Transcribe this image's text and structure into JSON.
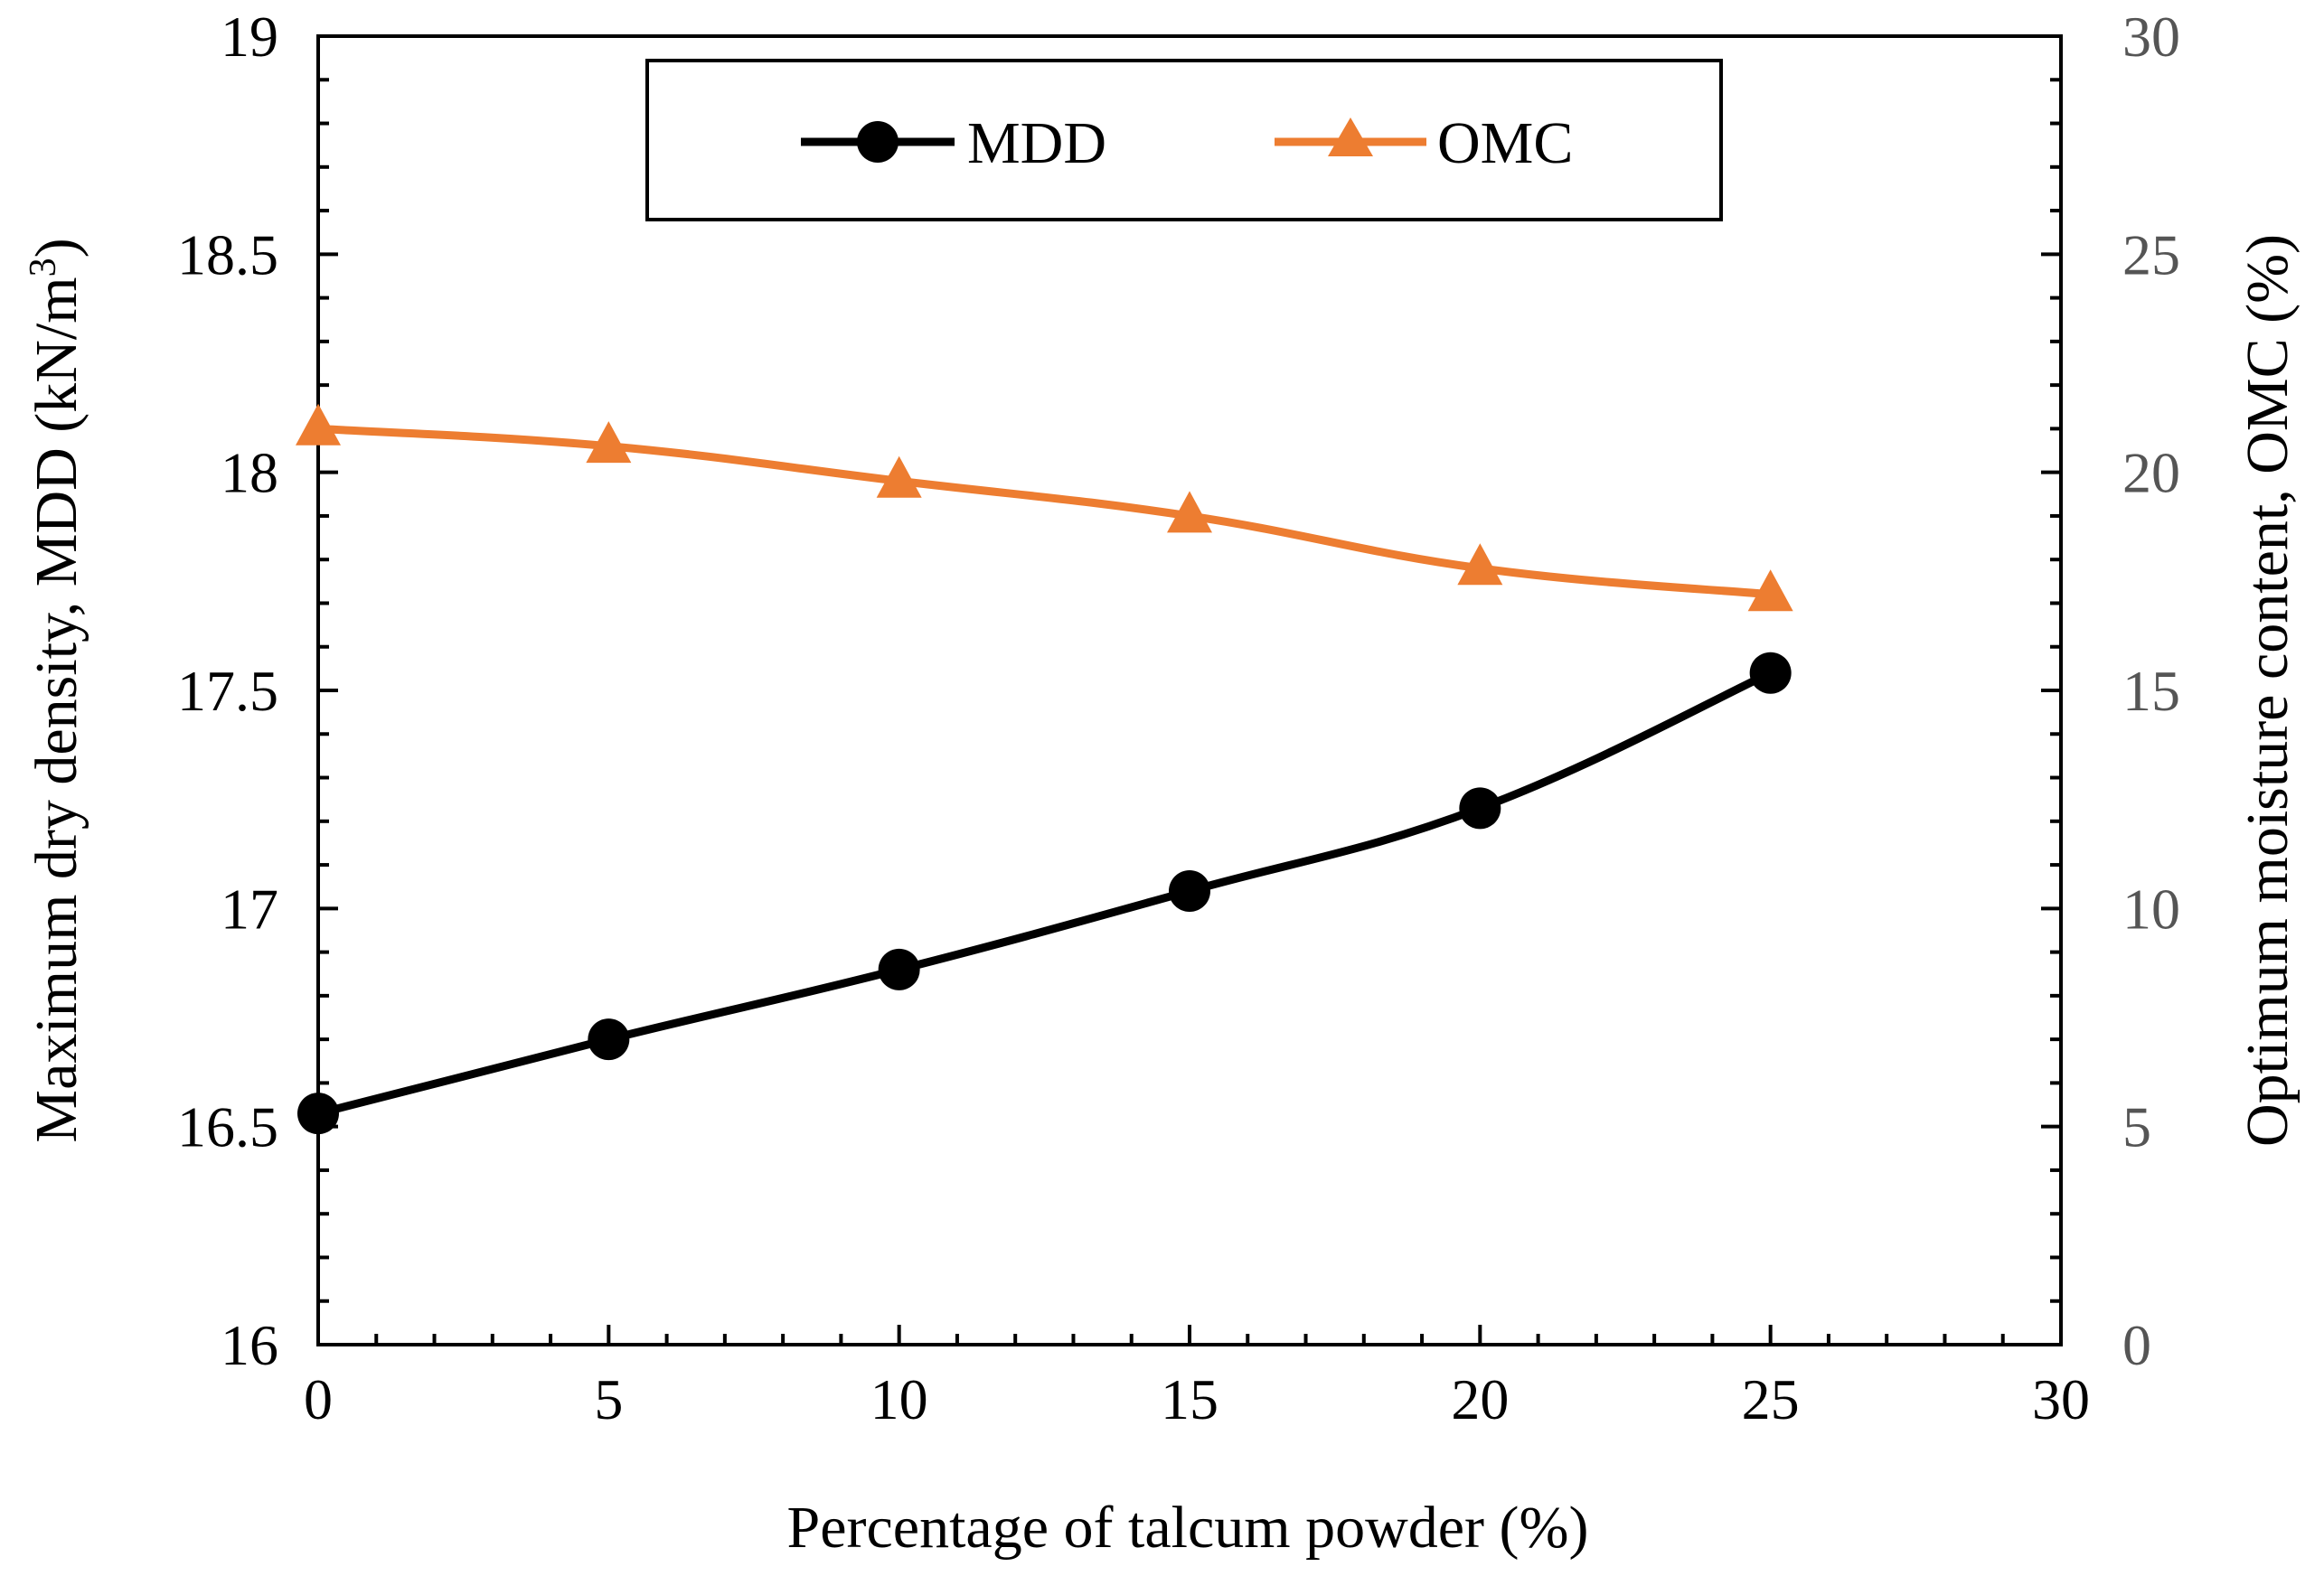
{
  "chart_data": {
    "type": "line",
    "title": "",
    "xlabel": "Percentage of talcum powder (%)",
    "ylabel_left": "Maximum dry density, MDD (kN/m",
    "ylabel_left_sup": "3",
    "ylabel_left_end": ")",
    "ylabel_right": "Optimum moisture content, OMC (%)",
    "x": [
      0,
      5,
      10,
      15,
      20,
      25
    ],
    "xlim": [
      0,
      30
    ],
    "xticks": [
      "0",
      "5",
      "10",
      "15",
      "20",
      "25",
      "30"
    ],
    "ylim_left": [
      16,
      19
    ],
    "yticks_left": [
      "16",
      "16.5",
      "17",
      "17.5",
      "18",
      "18.5",
      "19"
    ],
    "ylim_right": [
      0,
      30
    ],
    "yticks_right": [
      "0",
      "5",
      "10",
      "15",
      "20",
      "25",
      "30"
    ],
    "grid": false,
    "legend_position": "top-center",
    "series": [
      {
        "name": "MDD",
        "axis": "left",
        "marker": "circle",
        "color": "#000000",
        "values": [
          16.53,
          16.7,
          16.86,
          17.04,
          17.23,
          17.54
        ]
      },
      {
        "name": "OMC",
        "axis": "right",
        "marker": "triangle",
        "color": "#ED7D31",
        "values": [
          21.0,
          20.6,
          19.8,
          19.0,
          17.8,
          17.2
        ]
      }
    ]
  }
}
